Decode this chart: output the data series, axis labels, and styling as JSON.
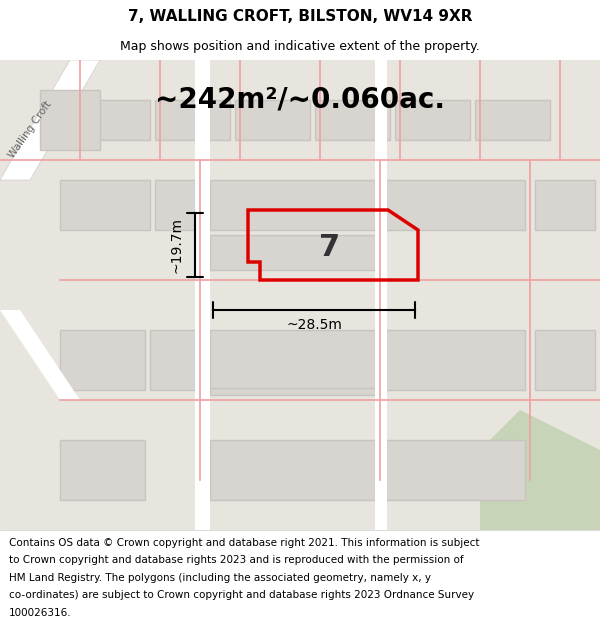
{
  "title": "7, WALLING CROFT, BILSTON, WV14 9XR",
  "subtitle": "Map shows position and indicative extent of the property.",
  "area_text": "~242m²/~0.060ac.",
  "label_7": "7",
  "dim_width": "~28.5m",
  "dim_height": "~19.7m",
  "footer": "Contains OS data © Crown copyright and database right 2021. This information is subject to Crown copyright and database rights 2023 and is reproduced with the permission of HM Land Registry. The polygons (including the associated geometry, namely x, y co-ordinates) are subject to Crown copyright and database rights 2023 Ordnance Survey 100026316.",
  "bg_color": "#f0ede8",
  "map_bg": "#e8e4df",
  "building_fill": "#d8d4cf",
  "building_edge": "#c8c4bf",
  "road_color": "#ffffff",
  "pink_line_color": "#f0a0a0",
  "red_outline_color": "#dd0000",
  "green_fill": "#c8d8b0",
  "footer_bg": "#ffffff",
  "walling_croft_text": "Walling Croft",
  "title_fontsize": 11,
  "subtitle_fontsize": 9,
  "area_fontsize": 20,
  "dim_fontsize": 10,
  "footer_fontsize": 7.5
}
